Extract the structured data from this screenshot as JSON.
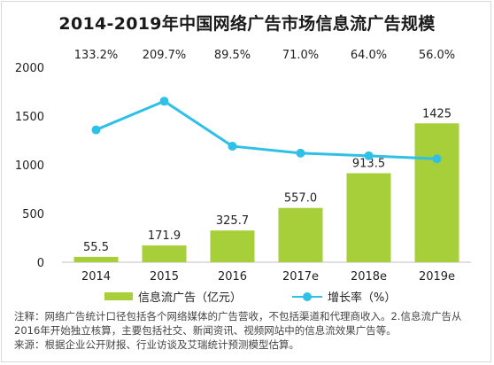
{
  "chart_data": {
    "type": "bar+line",
    "title": "2014-2019年中国网络广告市场信息流广告规模",
    "categories": [
      "2014",
      "2015",
      "2016",
      "2017e",
      "2018e",
      "2019e"
    ],
    "series": [
      {
        "name": "信息流广告（亿元）",
        "type": "bar",
        "color": "#a7cf3a",
        "values": [
          55.5,
          171.9,
          325.7,
          557.0,
          913.5,
          1425
        ],
        "labels": [
          "55.5",
          "171.9",
          "325.7",
          "557.0",
          "913.5",
          "1425"
        ]
      },
      {
        "name": "增长率（%）",
        "type": "line",
        "color": "#2ec0e6",
        "values": [
          133.2,
          209.7,
          89.5,
          71.0,
          64.0,
          56.0
        ],
        "labels": [
          "133.2%",
          "209.7%",
          "89.5%",
          "71.0%",
          "64.0%",
          "56.0%"
        ]
      }
    ],
    "y_ticks": [
      "0",
      "500",
      "1000",
      "1500",
      "2000"
    ],
    "ylim": [
      0,
      2000
    ],
    "y2lim": [
      -220,
      300
    ],
    "grid": false,
    "legend_position": "bottom"
  },
  "notes": {
    "line1": "注释：网络广告统计口径包括各个网络媒体的广告营收，不包括渠道和代理商收入。2.信息流广告从2016年开始独立核算，主要包括社交、新闻资讯、视频网站中的信息流效果广告等。",
    "line2": "来源：根据企业公开财报、行业访谈及艾瑞统计预测模型估算。"
  }
}
